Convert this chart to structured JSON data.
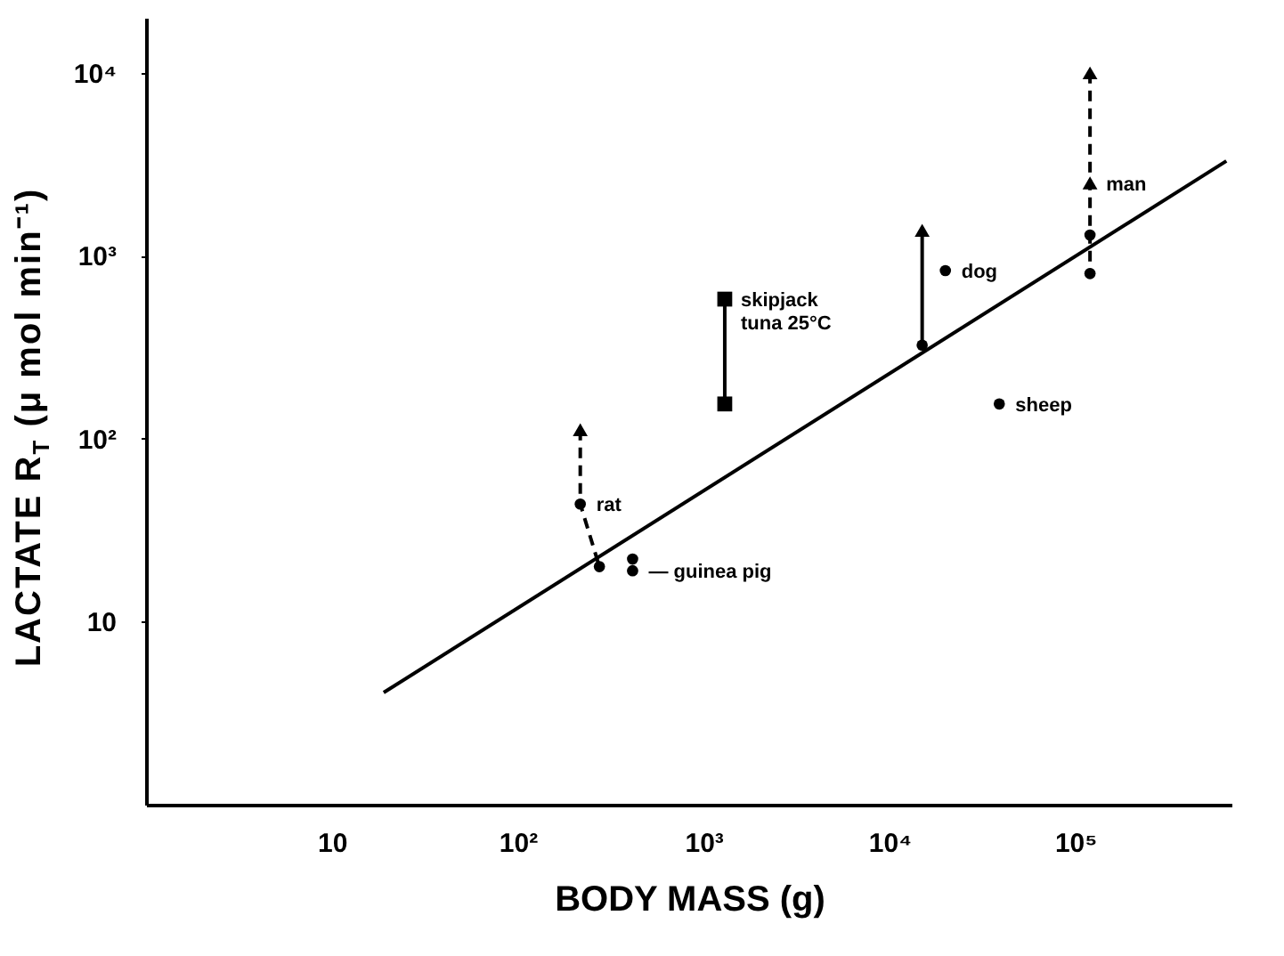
{
  "chart_data": {
    "type": "scatter",
    "xlabel": "BODY MASS (g)",
    "ylabel": "LACTATE R$_{T}$ (μ mol min⁻¹)",
    "log": "xy",
    "grid": false,
    "xlim": [
      1,
      700000
    ],
    "ylim": [
      1,
      20000
    ],
    "xticks": [
      10,
      {
        "value": 100,
        "label": "10²"
      },
      {
        "value": 1000,
        "label": "10³"
      },
      {
        "value": 10000,
        "label": "10⁴"
      },
      {
        "value": 100000,
        "label": "10⁵"
      }
    ],
    "yticks": [
      10,
      {
        "value": 100,
        "label": "10²"
      },
      {
        "value": 1000,
        "label": "10³"
      },
      {
        "value": 10000,
        "label": "10⁴"
      }
    ],
    "series": [
      {
        "type": "line",
        "color": "#000000",
        "line_style": "solid",
        "marker": "none",
        "x": [
          19,
          650000
        ],
        "values": [
          4.1,
          3300
        ]
      },
      {
        "type": "line",
        "color": "#000000",
        "line_style": "dashed",
        "marker": "none",
        "x": [
          217,
          217,
          275
        ],
        "values": [
          112,
          44,
          20
        ]
      },
      {
        "type": "line",
        "color": "#000000",
        "line_style": "solid",
        "marker": "none",
        "x": [
          1300,
          1300
        ],
        "values": [
          580,
          155
        ]
      },
      {
        "type": "line",
        "color": "#000000",
        "line_style": "solid",
        "marker": "none",
        "x": [
          15000,
          15000
        ],
        "values": [
          1380,
          325
        ]
      },
      {
        "type": "line",
        "color": "#000000",
        "line_style": "dashed",
        "marker": "none",
        "x": [
          120000,
          120000,
          120000,
          120000
        ],
        "values": [
          10000,
          2500,
          1300,
          800
        ]
      },
      {
        "color": "#000000",
        "marker": "circle",
        "x": [
          217,
          275,
          415,
          415,
          15000,
          20000,
          39000,
          120000,
          120000
        ],
        "values": [
          44,
          20,
          22,
          19,
          325,
          830,
          155,
          1300,
          800
        ]
      },
      {
        "color": "#000000",
        "marker": "triangle",
        "x": [
          217,
          15000,
          120000,
          120000
        ],
        "values": [
          112,
          1380,
          10000,
          2500
        ]
      },
      {
        "color": "#000000",
        "marker": "square",
        "x": [
          1300,
          1300
        ],
        "values": [
          580,
          155
        ]
      }
    ],
    "annotations": [
      {
        "text": "rat",
        "x": 217,
        "y": 44
      },
      {
        "text": "— guinea pig",
        "x": 415,
        "y": 19
      },
      {
        "text": "skipjack tuna 25°C",
        "x": 1300,
        "y": 580
      },
      {
        "text": "dog",
        "x": 20000,
        "y": 830
      },
      {
        "text": "sheep",
        "x": 39000,
        "y": 155
      },
      {
        "text": "man",
        "x": 120000,
        "y": 2500
      }
    ]
  }
}
